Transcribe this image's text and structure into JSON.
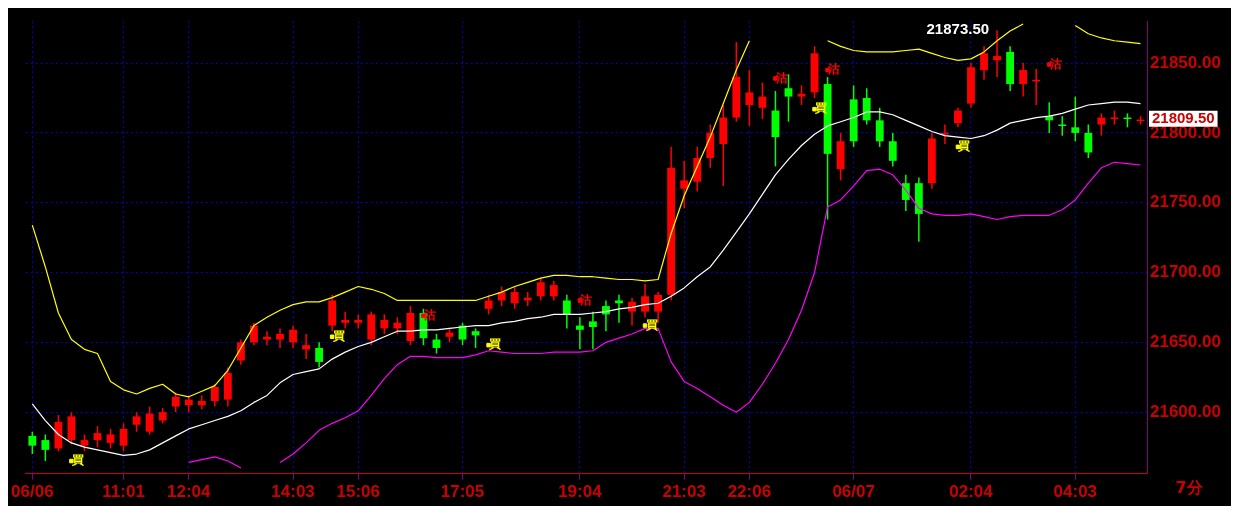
{
  "chart_data": {
    "type": "candlestick",
    "categories": [
      "06/06",
      null,
      null,
      null,
      null,
      null,
      null,
      "11:01",
      null,
      null,
      null,
      null,
      "12:04",
      null,
      null,
      null,
      null,
      null,
      null,
      null,
      "14:03",
      null,
      null,
      null,
      null,
      "15:06",
      null,
      null,
      null,
      null,
      null,
      null,
      null,
      "17:05",
      null,
      null,
      null,
      null,
      null,
      null,
      null,
      null,
      "19:04",
      null,
      null,
      null,
      null,
      null,
      null,
      null,
      "21:03",
      null,
      null,
      null,
      null,
      "22:06",
      null,
      null,
      null,
      null,
      null,
      null,
      null,
      "06/07",
      null,
      null,
      null,
      null,
      null,
      null,
      null,
      null,
      "02:04",
      null,
      null,
      null,
      null,
      null,
      null,
      null,
      "04:03",
      null,
      null,
      null,
      null,
      null
    ],
    "ohlc": [
      [
        21583,
        21586,
        21570,
        21576
      ],
      [
        21580,
        21584,
        21565,
        21573
      ],
      [
        21574,
        21598,
        21572,
        21593
      ],
      [
        21580,
        21600,
        21577,
        21597
      ],
      [
        21576,
        21584,
        21572,
        21580
      ],
      [
        21580,
        21590,
        21575,
        21585
      ],
      [
        21578,
        21588,
        21574,
        21584
      ],
      [
        21576,
        21592,
        21572,
        21588
      ],
      [
        21591,
        21600,
        21586,
        21597
      ],
      [
        21586,
        21604,
        21584,
        21599
      ],
      [
        21594,
        21603,
        21592,
        21600
      ],
      [
        21604,
        21614,
        21600,
        21611
      ],
      [
        21605,
        21612,
        21600,
        21609
      ],
      [
        21605,
        21612,
        21602,
        21608
      ],
      [
        21608,
        21620,
        21604,
        21618
      ],
      [
        21609,
        21632,
        21604,
        21628
      ],
      [
        21637,
        21652,
        21634,
        21650
      ],
      [
        21650,
        21664,
        21648,
        21662
      ],
      [
        21652,
        21658,
        21648,
        21654
      ],
      [
        21652,
        21660,
        21646,
        21656
      ],
      [
        21650,
        21662,
        21646,
        21659
      ],
      [
        21645,
        21656,
        21638,
        21648
      ],
      [
        21646,
        21650,
        21632,
        21636
      ],
      [
        21662,
        21684,
        21658,
        21680
      ],
      [
        21664,
        21672,
        21660,
        21666
      ],
      [
        21664,
        21670,
        21660,
        21666
      ],
      [
        21652,
        21672,
        21648,
        21670
      ],
      [
        21660,
        21670,
        21656,
        21666
      ],
      [
        21660,
        21668,
        21656,
        21664
      ],
      [
        21651,
        21676,
        21648,
        21671
      ],
      [
        21671,
        21674,
        21648,
        21653
      ],
      [
        21652,
        21656,
        21642,
        21646
      ],
      [
        21654,
        21660,
        21650,
        21657
      ],
      [
        21662,
        21664,
        21648,
        21652
      ],
      [
        21658,
        21660,
        21646,
        21655
      ],
      [
        21674,
        21684,
        21670,
        21680
      ],
      [
        21680,
        21690,
        21676,
        21686
      ],
      [
        21678,
        21690,
        21674,
        21686
      ],
      [
        21680,
        21686,
        21676,
        21682
      ],
      [
        21683,
        21696,
        21680,
        21693
      ],
      [
        21683,
        21694,
        21680,
        21691
      ],
      [
        21680,
        21684,
        21660,
        21670
      ],
      [
        21662,
        21668,
        21645,
        21659
      ],
      [
        21665,
        21672,
        21645,
        21661
      ],
      [
        21676,
        21680,
        21658,
        21670
      ],
      [
        21680,
        21684,
        21664,
        21678
      ],
      [
        21672,
        21682,
        21662,
        21679
      ],
      [
        21672,
        21692,
        21668,
        21683
      ],
      [
        21672,
        21686,
        21664,
        21684
      ],
      [
        21684,
        21790,
        21680,
        21775
      ],
      [
        21760,
        21780,
        21746,
        21766
      ],
      [
        21765,
        21790,
        21758,
        21782
      ],
      [
        21782,
        21806,
        21775,
        21800
      ],
      [
        21792,
        21820,
        21762,
        21811
      ],
      [
        21811,
        21865,
        21808,
        21840
      ],
      [
        21820,
        21845,
        21805,
        21829
      ],
      [
        21818,
        21836,
        21810,
        21826
      ],
      [
        21816,
        21830,
        21776,
        21797
      ],
      [
        21832,
        21842,
        21808,
        21826
      ],
      [
        21826,
        21834,
        21820,
        21828
      ],
      [
        21829,
        21862,
        21825,
        21857
      ],
      [
        21835,
        21840,
        21738,
        21785
      ],
      [
        21774,
        21800,
        21766,
        21794
      ],
      [
        21824,
        21834,
        21790,
        21794
      ],
      [
        21825,
        21832,
        21806,
        21809
      ],
      [
        21809,
        21818,
        21790,
        21794
      ],
      [
        21794,
        21800,
        21776,
        21780
      ],
      [
        21764,
        21770,
        21744,
        21752
      ],
      [
        21764,
        21768,
        21722,
        21742
      ],
      [
        21764,
        21800,
        21760,
        21796
      ],
      [
        21799,
        21806,
        21792,
        21800
      ],
      [
        21807,
        21818,
        21804,
        21816
      ],
      [
        21821,
        21850,
        21818,
        21847
      ],
      [
        21845,
        21862,
        21838,
        21857
      ],
      [
        21852,
        21873.5,
        21840,
        21855
      ],
      [
        21858,
        21862,
        21830,
        21835
      ],
      [
        21835,
        21850,
        21826,
        21845
      ],
      [
        21838,
        21846,
        21820,
        21838
      ],
      [
        21812,
        21822,
        21800,
        21809
      ],
      [
        21806,
        21812,
        21798,
        21805
      ],
      [
        21804,
        21826,
        21794,
        21800
      ],
      [
        21800,
        21806,
        21782,
        21786
      ],
      [
        21806,
        21814,
        21798,
        21811
      ],
      [
        21810,
        21816,
        21806,
        21811
      ],
      [
        21811,
        21814,
        21804,
        21810
      ],
      [
        21809,
        21812,
        21806,
        21809.5
      ]
    ],
    "series": [
      {
        "type": "line",
        "color": "#ffff00",
        "values": [
          21734,
          21704,
          21671,
          21652,
          21645,
          21642,
          21622,
          21616,
          21613,
          21617,
          21620,
          21613,
          21611,
          21615,
          21619,
          21630,
          21646,
          21662,
          21668,
          21673,
          21677,
          21679,
          21679,
          21682,
          21686,
          21690,
          21688,
          21685,
          21680,
          21680,
          21680,
          21680,
          21680,
          21680,
          21680,
          21683,
          21686,
          21690,
          21693,
          21696,
          21698,
          21698,
          21697,
          21697,
          21696,
          21695,
          21695,
          21694,
          21695,
          21728,
          21755,
          21776,
          21797,
          21821,
          21845,
          21866,
          null,
          null,
          null,
          null,
          null,
          21866,
          21862,
          21859,
          21858,
          21858,
          21858,
          21859,
          21860,
          21857,
          21854,
          21852,
          21853,
          21858,
          21866,
          21873,
          21878,
          null,
          null,
          null,
          21877,
          21871,
          21868,
          21866,
          21865,
          21864
        ]
      },
      {
        "type": "line",
        "color": "#ffffff",
        "values": [
          21606,
          21594,
          21584,
          21578,
          21575,
          21573,
          21571,
          21569,
          21570,
          21573,
          21578,
          21583,
          21588,
          21591,
          21594,
          21597,
          21601,
          21607,
          21612,
          21621,
          21627,
          21629,
          21631,
          21638,
          21643,
          21647,
          21650,
          21654,
          21658,
          21658,
          21659,
          21659,
          21660,
          21661,
          21662,
          21662,
          21664,
          21665,
          21667,
          21668,
          21670,
          21670,
          21670,
          21671,
          21672,
          21674,
          21675,
          21677,
          21678,
          21683,
          21689,
          21697,
          21704,
          21716,
          21729,
          21742,
          21756,
          21770,
          21781,
          21791,
          21799,
          21805,
          21808,
          21811,
          21815,
          21815,
          21813,
          21809,
          21805,
          21801,
          21798,
          21797,
          21796,
          21798,
          21802,
          21807,
          21809,
          21811,
          21812,
          21814,
          21817,
          21820,
          21821,
          21822,
          21822,
          21821
        ]
      },
      {
        "type": "line",
        "color": "#ff00ff",
        "values": [
          null,
          null,
          null,
          null,
          null,
          null,
          null,
          null,
          null,
          null,
          null,
          null,
          21564,
          21566,
          21568,
          21565,
          21560,
          null,
          null,
          21564,
          21570,
          21578,
          21587,
          21592,
          21596,
          21601,
          21612,
          21624,
          21634,
          21640,
          21640,
          21639,
          21639,
          21639,
          21641,
          21644,
          21643,
          21642,
          21642,
          21642,
          21643,
          21643,
          21643,
          21644,
          21650,
          21653,
          21656,
          21660,
          21660,
          21636,
          21622,
          21617,
          21611,
          21605,
          21600,
          21607,
          21620,
          21635,
          21652,
          21673,
          21700,
          21747,
          21752,
          21762,
          21773,
          21774,
          21770,
          21759,
          21746,
          21742,
          21741,
          21741,
          21742,
          21740,
          21738,
          21740,
          21741,
          21741,
          21741,
          21745,
          21752,
          21764,
          21775,
          21779,
          21778,
          21777
        ]
      },
      {
        "type": "scatter",
        "name": "買",
        "color": "#ffff00",
        "values": [
          null,
          null,
          null,
          21565,
          null,
          null,
          null,
          null,
          null,
          null,
          null,
          null,
          null,
          null,
          null,
          null,
          null,
          null,
          null,
          null,
          null,
          null,
          null,
          21654,
          null,
          null,
          null,
          null,
          null,
          null,
          null,
          null,
          null,
          null,
          null,
          21648,
          null,
          null,
          null,
          null,
          null,
          null,
          null,
          null,
          null,
          null,
          null,
          21662,
          null,
          null,
          null,
          null,
          null,
          null,
          null,
          null,
          null,
          null,
          null,
          null,
          21817,
          null,
          null,
          null,
          null,
          null,
          null,
          null,
          null,
          null,
          null,
          21790,
          null,
          null,
          null,
          null,
          null,
          null,
          null,
          null,
          null,
          null,
          null,
          null,
          null,
          null
        ]
      },
      {
        "type": "scatter",
        "name": "沽",
        "color": "#ff0000",
        "values": [
          null,
          null,
          null,
          null,
          null,
          null,
          null,
          null,
          null,
          null,
          null,
          null,
          null,
          null,
          null,
          null,
          null,
          null,
          null,
          null,
          null,
          null,
          null,
          null,
          null,
          null,
          null,
          null,
          null,
          null,
          21669,
          null,
          null,
          null,
          null,
          null,
          null,
          null,
          null,
          null,
          null,
          null,
          21680,
          null,
          null,
          null,
          null,
          null,
          null,
          null,
          null,
          null,
          null,
          null,
          null,
          null,
          null,
          21839,
          null,
          null,
          null,
          21845,
          null,
          null,
          null,
          null,
          null,
          null,
          null,
          null,
          null,
          null,
          null,
          null,
          null,
          null,
          null,
          null,
          21849,
          null,
          null,
          null,
          null,
          null,
          null,
          null
        ]
      }
    ],
    "xlabel": "7分",
    "ylim": [
      21556,
      21880
    ],
    "yticks": [
      {
        "value": 21600,
        "label": "21600.00"
      },
      {
        "value": 21650,
        "label": "21650.00"
      },
      {
        "value": 21700,
        "label": "21700.00"
      },
      {
        "value": 21750,
        "label": "21750.00"
      },
      {
        "value": 21800,
        "label": "21800.00"
      },
      {
        "value": 21850,
        "label": "21850.00"
      }
    ],
    "grid": true,
    "value_labels": [
      null,
      null,
      null,
      null,
      null,
      null,
      null,
      null,
      null,
      null,
      null,
      null,
      null,
      null,
      null,
      null,
      null,
      null,
      null,
      null,
      null,
      null,
      null,
      null,
      null,
      null,
      null,
      null,
      null,
      null,
      null,
      null,
      null,
      null,
      null,
      null,
      null,
      null,
      null,
      null,
      null,
      null,
      null,
      null,
      null,
      null,
      null,
      null,
      null,
      null,
      null,
      null,
      null,
      null,
      null,
      null,
      null,
      null,
      null,
      null,
      null,
      null,
      null,
      null,
      null,
      null,
      null,
      null,
      null,
      null,
      null,
      null,
      null,
      null,
      "21873.50",
      null,
      null,
      null,
      null,
      null,
      null,
      null,
      null,
      null,
      null,
      "21809.50"
    ]
  }
}
